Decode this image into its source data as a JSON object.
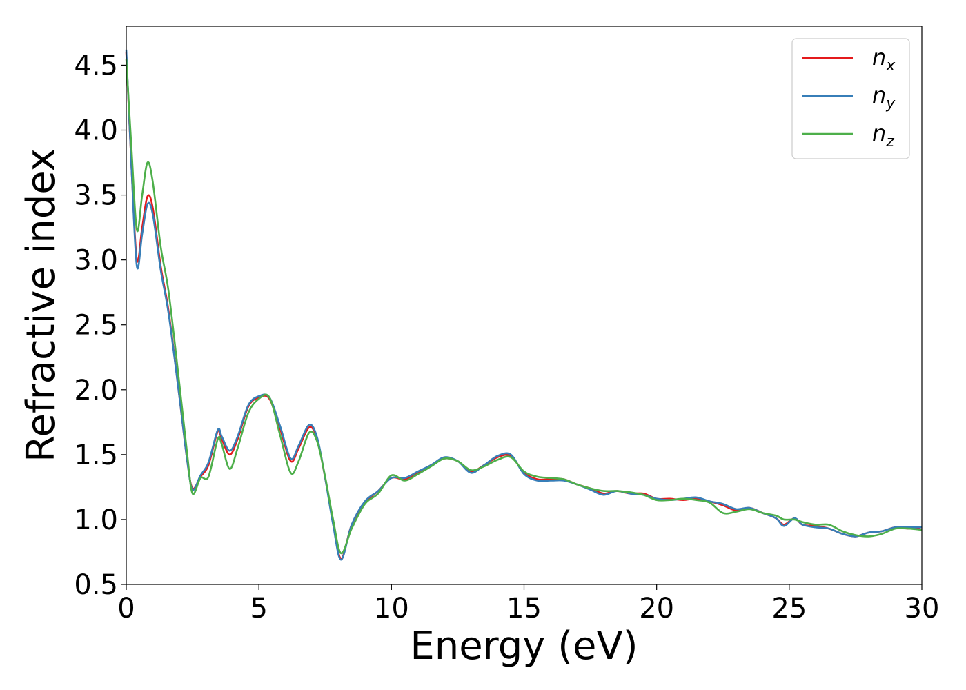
{
  "chart_data": {
    "type": "line",
    "title": "",
    "xlabel": "Energy (eV)",
    "ylabel": "Refractive index",
    "xlim": [
      0,
      30
    ],
    "ylim": [
      0.5,
      4.8
    ],
    "xticks": [
      0,
      5,
      10,
      15,
      20,
      25,
      30
    ],
    "xtick_labels": [
      "0",
      "5",
      "10",
      "15",
      "20",
      "25",
      "30"
    ],
    "yticks": [
      0.5,
      1.0,
      1.5,
      2.0,
      2.5,
      3.0,
      3.5,
      4.0,
      4.5
    ],
    "ytick_labels": [
      "0.5",
      "1.0",
      "1.5",
      "2.0",
      "2.5",
      "3.0",
      "3.5",
      "4.0",
      "4.5"
    ],
    "grid": false,
    "legend_position": "top-right",
    "series": [
      {
        "name": "n_x",
        "label_base": "n",
        "label_sub": "x",
        "color": "#e41a1c",
        "points": [
          [
            0,
            4.6
          ],
          [
            0.2,
            3.7
          ],
          [
            0.4,
            3.0
          ],
          [
            0.6,
            3.25
          ],
          [
            0.8,
            3.49
          ],
          [
            1.0,
            3.4
          ],
          [
            1.3,
            2.95
          ],
          [
            1.6,
            2.6
          ],
          [
            2.0,
            1.95
          ],
          [
            2.3,
            1.45
          ],
          [
            2.5,
            1.24
          ],
          [
            2.8,
            1.33
          ],
          [
            3.1,
            1.42
          ],
          [
            3.45,
            1.68
          ],
          [
            3.6,
            1.62
          ],
          [
            3.9,
            1.5
          ],
          [
            4.2,
            1.62
          ],
          [
            4.6,
            1.87
          ],
          [
            5.0,
            1.94
          ],
          [
            5.4,
            1.93
          ],
          [
            5.8,
            1.7
          ],
          [
            6.2,
            1.45
          ],
          [
            6.5,
            1.55
          ],
          [
            6.9,
            1.71
          ],
          [
            7.2,
            1.62
          ],
          [
            7.5,
            1.32
          ],
          [
            7.8,
            0.98
          ],
          [
            8.1,
            0.7
          ],
          [
            8.5,
            0.96
          ],
          [
            9.0,
            1.13
          ],
          [
            9.5,
            1.22
          ],
          [
            10.0,
            1.32
          ],
          [
            10.5,
            1.31
          ],
          [
            11.0,
            1.36
          ],
          [
            11.5,
            1.42
          ],
          [
            12.0,
            1.47
          ],
          [
            12.5,
            1.45
          ],
          [
            13.0,
            1.37
          ],
          [
            13.5,
            1.42
          ],
          [
            14.0,
            1.48
          ],
          [
            14.5,
            1.49
          ],
          [
            15.0,
            1.36
          ],
          [
            15.5,
            1.31
          ],
          [
            16.0,
            1.31
          ],
          [
            16.5,
            1.31
          ],
          [
            17.0,
            1.27
          ],
          [
            17.5,
            1.24
          ],
          [
            18.0,
            1.2
          ],
          [
            18.5,
            1.22
          ],
          [
            19.0,
            1.2
          ],
          [
            19.5,
            1.2
          ],
          [
            20.0,
            1.16
          ],
          [
            20.5,
            1.16
          ],
          [
            21.0,
            1.15
          ],
          [
            21.5,
            1.16
          ],
          [
            22.0,
            1.14
          ],
          [
            22.5,
            1.11
          ],
          [
            23.0,
            1.07
          ],
          [
            23.5,
            1.09
          ],
          [
            24.0,
            1.05
          ],
          [
            24.5,
            1.01
          ],
          [
            24.8,
            0.96
          ],
          [
            25.2,
            1.01
          ],
          [
            25.5,
            0.96
          ],
          [
            26.0,
            0.95
          ],
          [
            26.5,
            0.93
          ],
          [
            27.0,
            0.89
          ],
          [
            27.5,
            0.87
          ],
          [
            28.0,
            0.9
          ],
          [
            28.5,
            0.91
          ],
          [
            29.0,
            0.94
          ],
          [
            29.5,
            0.93
          ],
          [
            30.0,
            0.94
          ]
        ]
      },
      {
        "name": "n_y",
        "label_base": "n",
        "label_sub": "y",
        "color": "#377eb8",
        "points": [
          [
            0,
            4.62
          ],
          [
            0.2,
            3.7
          ],
          [
            0.4,
            2.95
          ],
          [
            0.6,
            3.2
          ],
          [
            0.8,
            3.43
          ],
          [
            1.0,
            3.35
          ],
          [
            1.3,
            2.92
          ],
          [
            1.6,
            2.58
          ],
          [
            2.0,
            1.95
          ],
          [
            2.3,
            1.45
          ],
          [
            2.5,
            1.23
          ],
          [
            2.8,
            1.34
          ],
          [
            3.1,
            1.44
          ],
          [
            3.45,
            1.69
          ],
          [
            3.6,
            1.64
          ],
          [
            3.9,
            1.53
          ],
          [
            4.2,
            1.64
          ],
          [
            4.6,
            1.88
          ],
          [
            5.0,
            1.95
          ],
          [
            5.4,
            1.94
          ],
          [
            5.8,
            1.72
          ],
          [
            6.2,
            1.47
          ],
          [
            6.5,
            1.57
          ],
          [
            6.9,
            1.73
          ],
          [
            7.2,
            1.63
          ],
          [
            7.5,
            1.32
          ],
          [
            7.8,
            0.96
          ],
          [
            8.1,
            0.69
          ],
          [
            8.5,
            0.96
          ],
          [
            9.0,
            1.14
          ],
          [
            9.5,
            1.22
          ],
          [
            10.0,
            1.32
          ],
          [
            10.5,
            1.32
          ],
          [
            11.0,
            1.37
          ],
          [
            11.5,
            1.42
          ],
          [
            12.0,
            1.48
          ],
          [
            12.5,
            1.45
          ],
          [
            13.0,
            1.36
          ],
          [
            13.5,
            1.42
          ],
          [
            14.0,
            1.49
          ],
          [
            14.5,
            1.5
          ],
          [
            15.0,
            1.35
          ],
          [
            15.5,
            1.3
          ],
          [
            16.0,
            1.3
          ],
          [
            16.5,
            1.3
          ],
          [
            17.0,
            1.27
          ],
          [
            17.5,
            1.23
          ],
          [
            18.0,
            1.19
          ],
          [
            18.5,
            1.22
          ],
          [
            19.0,
            1.2
          ],
          [
            19.5,
            1.19
          ],
          [
            20.0,
            1.16
          ],
          [
            20.5,
            1.15
          ],
          [
            21.0,
            1.16
          ],
          [
            21.5,
            1.17
          ],
          [
            22.0,
            1.14
          ],
          [
            22.5,
            1.12
          ],
          [
            23.0,
            1.08
          ],
          [
            23.5,
            1.09
          ],
          [
            24.0,
            1.05
          ],
          [
            24.5,
            1.01
          ],
          [
            24.8,
            0.95
          ],
          [
            25.2,
            1.01
          ],
          [
            25.5,
            0.96
          ],
          [
            26.0,
            0.94
          ],
          [
            26.5,
            0.93
          ],
          [
            27.0,
            0.89
          ],
          [
            27.5,
            0.87
          ],
          [
            28.0,
            0.9
          ],
          [
            28.5,
            0.91
          ],
          [
            29.0,
            0.94
          ],
          [
            29.5,
            0.94
          ],
          [
            30.0,
            0.94
          ]
        ]
      },
      {
        "name": "n_z",
        "label_base": "n",
        "label_sub": "z",
        "color": "#4daf4a",
        "points": [
          [
            0,
            4.55
          ],
          [
            0.2,
            3.85
          ],
          [
            0.4,
            3.23
          ],
          [
            0.6,
            3.5
          ],
          [
            0.8,
            3.75
          ],
          [
            1.0,
            3.6
          ],
          [
            1.3,
            3.1
          ],
          [
            1.6,
            2.75
          ],
          [
            2.0,
            2.05
          ],
          [
            2.3,
            1.5
          ],
          [
            2.5,
            1.2
          ],
          [
            2.8,
            1.32
          ],
          [
            3.1,
            1.33
          ],
          [
            3.45,
            1.62
          ],
          [
            3.6,
            1.58
          ],
          [
            3.9,
            1.39
          ],
          [
            4.2,
            1.55
          ],
          [
            4.6,
            1.82
          ],
          [
            5.0,
            1.93
          ],
          [
            5.4,
            1.94
          ],
          [
            5.8,
            1.65
          ],
          [
            6.2,
            1.36
          ],
          [
            6.5,
            1.45
          ],
          [
            6.9,
            1.67
          ],
          [
            7.2,
            1.6
          ],
          [
            7.5,
            1.33
          ],
          [
            7.8,
            1.0
          ],
          [
            8.1,
            0.74
          ],
          [
            8.5,
            0.93
          ],
          [
            9.0,
            1.12
          ],
          [
            9.5,
            1.2
          ],
          [
            10.0,
            1.34
          ],
          [
            10.5,
            1.3
          ],
          [
            11.0,
            1.35
          ],
          [
            11.5,
            1.41
          ],
          [
            12.0,
            1.47
          ],
          [
            12.5,
            1.45
          ],
          [
            13.0,
            1.38
          ],
          [
            13.5,
            1.41
          ],
          [
            14.0,
            1.46
          ],
          [
            14.5,
            1.48
          ],
          [
            15.0,
            1.37
          ],
          [
            15.5,
            1.33
          ],
          [
            16.0,
            1.32
          ],
          [
            16.5,
            1.31
          ],
          [
            17.0,
            1.27
          ],
          [
            17.5,
            1.24
          ],
          [
            18.0,
            1.22
          ],
          [
            18.5,
            1.22
          ],
          [
            19.0,
            1.21
          ],
          [
            19.5,
            1.19
          ],
          [
            20.0,
            1.15
          ],
          [
            20.5,
            1.15
          ],
          [
            21.0,
            1.16
          ],
          [
            21.5,
            1.15
          ],
          [
            22.0,
            1.13
          ],
          [
            22.5,
            1.05
          ],
          [
            23.0,
            1.06
          ],
          [
            23.5,
            1.08
          ],
          [
            24.0,
            1.05
          ],
          [
            24.5,
            1.03
          ],
          [
            24.8,
            1.0
          ],
          [
            25.2,
            1.0
          ],
          [
            25.5,
            0.98
          ],
          [
            26.0,
            0.96
          ],
          [
            26.5,
            0.96
          ],
          [
            27.0,
            0.91
          ],
          [
            27.5,
            0.88
          ],
          [
            28.0,
            0.87
          ],
          [
            28.5,
            0.89
          ],
          [
            29.0,
            0.93
          ],
          [
            29.5,
            0.93
          ],
          [
            30.0,
            0.92
          ]
        ]
      }
    ]
  }
}
